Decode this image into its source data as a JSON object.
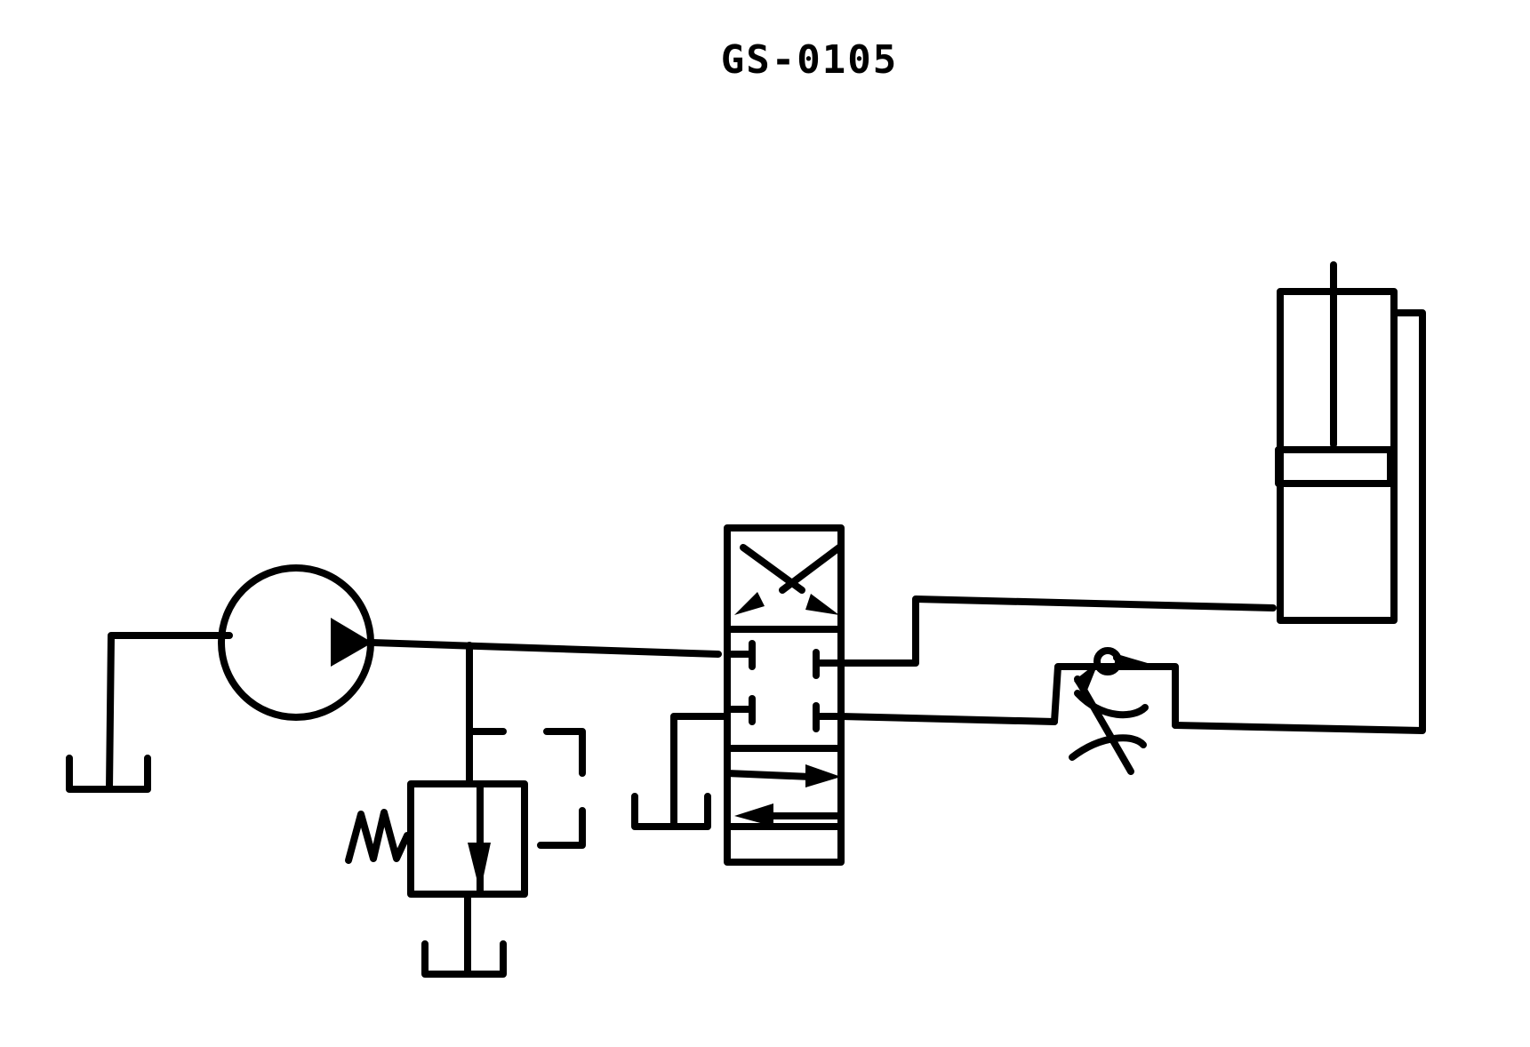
{
  "title": "GS-0105",
  "components": [
    {
      "id": "pump",
      "icon": "hydraulic-pump-icon"
    },
    {
      "id": "relief-valve",
      "icon": "pressure-relief-valve-icon"
    },
    {
      "id": "directional-valve",
      "icon": "four-way-three-position-valve-icon"
    },
    {
      "id": "flow-control",
      "icon": "adjustable-flow-control-valve-icon"
    },
    {
      "id": "cylinder",
      "icon": "double-acting-cylinder-icon"
    },
    {
      "id": "reservoir",
      "icon": "tank-icon",
      "count": 3
    }
  ],
  "colors": {
    "line": "#000000",
    "background": "#ffffff"
  }
}
